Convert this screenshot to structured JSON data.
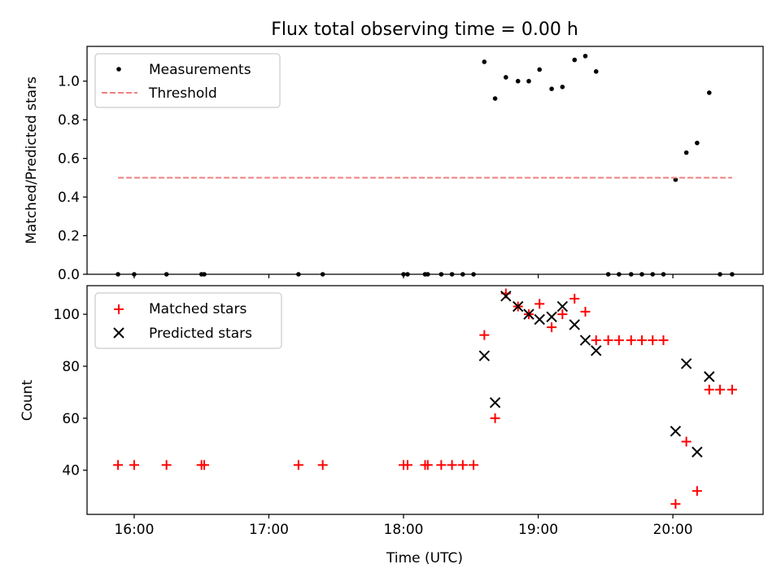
{
  "chart_data": {
    "title": "Flux total observing time = 0.00 h",
    "xlabel": "Time (UTC)",
    "xlim_hours": [
      15.65,
      20.67
    ],
    "x_ticks": [
      {
        "value": 16,
        "label": "16:00"
      },
      {
        "value": 17,
        "label": "17:00"
      },
      {
        "value": 18,
        "label": "18:00"
      },
      {
        "value": 19,
        "label": "19:00"
      },
      {
        "value": 20,
        "label": "20:00"
      }
    ],
    "panels": [
      {
        "type": "scatter",
        "ylabel": "Matched/Predicted stars",
        "ylim": [
          0,
          1.18
        ],
        "y_ticks": [
          {
            "value": 0.0,
            "label": "0.0"
          },
          {
            "value": 0.2,
            "label": "0.2"
          },
          {
            "value": 0.4,
            "label": "0.4"
          },
          {
            "value": 0.6,
            "label": "0.6"
          },
          {
            "value": 0.8,
            "label": "0.8"
          },
          {
            "value": 1.0,
            "label": "1.0"
          }
        ],
        "legend": [
          "Measurements",
          "Threshold"
        ],
        "legend_position": "top-left",
        "series": [
          {
            "name": "Measurements",
            "marker": "dot",
            "color": "#000000",
            "points": [
              [
                15.88,
                0
              ],
              [
                16.0,
                0
              ],
              [
                16.24,
                0
              ],
              [
                16.5,
                0
              ],
              [
                16.52,
                0
              ],
              [
                17.22,
                0
              ],
              [
                17.4,
                0
              ],
              [
                18.0,
                0
              ],
              [
                18.03,
                0
              ],
              [
                18.16,
                0
              ],
              [
                18.18,
                0
              ],
              [
                18.28,
                0
              ],
              [
                18.36,
                0
              ],
              [
                18.44,
                0
              ],
              [
                18.52,
                0
              ],
              [
                18.6,
                1.1
              ],
              [
                18.68,
                0.91
              ],
              [
                18.76,
                1.02
              ],
              [
                18.85,
                1.0
              ],
              [
                18.93,
                1.0
              ],
              [
                19.01,
                1.06
              ],
              [
                19.1,
                0.96
              ],
              [
                19.18,
                0.97
              ],
              [
                19.27,
                1.11
              ],
              [
                19.35,
                1.13
              ],
              [
                19.43,
                1.05
              ],
              [
                19.52,
                0
              ],
              [
                19.6,
                0
              ],
              [
                19.69,
                0
              ],
              [
                19.77,
                0
              ],
              [
                19.85,
                0
              ],
              [
                19.93,
                0
              ],
              [
                20.02,
                0.49
              ],
              [
                20.1,
                0.63
              ],
              [
                20.18,
                0.68
              ],
              [
                20.27,
                0.94
              ],
              [
                20.35,
                0
              ],
              [
                20.44,
                0
              ]
            ]
          },
          {
            "name": "Threshold",
            "marker": "dashed-line",
            "color": "#f08080",
            "points": [
              [
                15.88,
                0.5
              ],
              [
                20.44,
                0.5
              ]
            ]
          }
        ]
      },
      {
        "type": "scatter",
        "ylabel": "Count",
        "ylim": [
          23,
          111
        ],
        "y_ticks": [
          {
            "value": 40,
            "label": "40"
          },
          {
            "value": 60,
            "label": "60"
          },
          {
            "value": 80,
            "label": "80"
          },
          {
            "value": 100,
            "label": "100"
          }
        ],
        "legend": [
          "Matched stars",
          "Predicted stars"
        ],
        "legend_position": "top-left",
        "series": [
          {
            "name": "Matched stars",
            "marker": "plus",
            "color": "#ff0000",
            "points": [
              [
                15.88,
                42
              ],
              [
                16.0,
                42
              ],
              [
                16.24,
                42
              ],
              [
                16.5,
                42
              ],
              [
                16.52,
                42
              ],
              [
                17.22,
                42
              ],
              [
                17.4,
                42
              ],
              [
                18.0,
                42
              ],
              [
                18.03,
                42
              ],
              [
                18.16,
                42
              ],
              [
                18.18,
                42
              ],
              [
                18.28,
                42
              ],
              [
                18.36,
                42
              ],
              [
                18.44,
                42
              ],
              [
                18.52,
                42
              ],
              [
                18.6,
                92
              ],
              [
                18.68,
                60
              ],
              [
                18.76,
                108
              ],
              [
                18.85,
                103
              ],
              [
                18.93,
                100
              ],
              [
                19.01,
                104
              ],
              [
                19.1,
                95
              ],
              [
                19.18,
                100
              ],
              [
                19.27,
                106
              ],
              [
                19.35,
                101
              ],
              [
                19.43,
                90
              ],
              [
                19.52,
                90
              ],
              [
                19.6,
                90
              ],
              [
                19.69,
                90
              ],
              [
                19.77,
                90
              ],
              [
                19.85,
                90
              ],
              [
                19.93,
                90
              ],
              [
                20.02,
                27
              ],
              [
                20.1,
                51
              ],
              [
                20.18,
                32
              ],
              [
                20.27,
                71
              ],
              [
                20.35,
                71
              ],
              [
                20.44,
                71
              ]
            ]
          },
          {
            "name": "Predicted stars",
            "marker": "x",
            "color": "#000000",
            "points": [
              [
                18.6,
                84
              ],
              [
                18.68,
                66
              ],
              [
                18.76,
                107
              ],
              [
                18.85,
                103
              ],
              [
                18.93,
                100
              ],
              [
                19.01,
                98
              ],
              [
                19.1,
                99
              ],
              [
                19.18,
                103
              ],
              [
                19.27,
                96
              ],
              [
                19.35,
                90
              ],
              [
                19.43,
                86
              ],
              [
                20.02,
                55
              ],
              [
                20.1,
                81
              ],
              [
                20.18,
                47
              ],
              [
                20.27,
                76
              ]
            ]
          }
        ]
      }
    ]
  }
}
